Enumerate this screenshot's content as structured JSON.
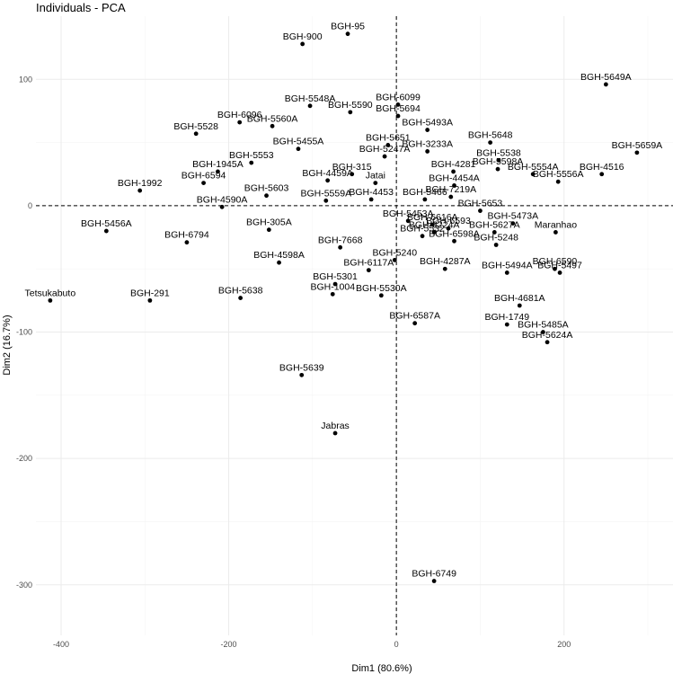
{
  "chart_data": {
    "type": "scatter",
    "title": "Individuals - PCA",
    "xlabel": "Dim1 (80.6%)",
    "ylabel": "Dim2 (16.7%)",
    "xlim": [
      -430,
      330
    ],
    "ylim": [
      -340,
      150
    ],
    "xticks": [
      -400,
      -200,
      0,
      200
    ],
    "yticks": [
      -300,
      -200,
      -100,
      0,
      100
    ],
    "grid": true,
    "reference_lines": {
      "x": 0,
      "y": 0
    },
    "points": [
      {
        "label": "BGH-95",
        "x": -58,
        "y": 136
      },
      {
        "label": "BGH-900",
        "x": -112,
        "y": 128
      },
      {
        "label": "BGH-5649A",
        "x": 250,
        "y": 96
      },
      {
        "label": "BGH-6099",
        "x": 2,
        "y": 80
      },
      {
        "label": "BGH-5548A",
        "x": -103,
        "y": 79
      },
      {
        "label": "BGH-5590",
        "x": -55,
        "y": 74
      },
      {
        "label": "BGH-5694",
        "x": 2,
        "y": 71
      },
      {
        "label": "BGH-6096",
        "x": -187,
        "y": 66
      },
      {
        "label": "BGH-5560A",
        "x": -148,
        "y": 63
      },
      {
        "label": "BGH-5528",
        "x": -239,
        "y": 57
      },
      {
        "label": "BGH-5493A",
        "x": 37,
        "y": 60
      },
      {
        "label": "BGH-5455A",
        "x": -117,
        "y": 45
      },
      {
        "label": "BGH-5651",
        "x": -10,
        "y": 48
      },
      {
        "label": "BGH-5648",
        "x": 112,
        "y": 50
      },
      {
        "label": "BGH-5247A",
        "x": -14,
        "y": 39
      },
      {
        "label": "BGH-3233A",
        "x": 37,
        "y": 43
      },
      {
        "label": "BGH-5538",
        "x": 122,
        "y": 36
      },
      {
        "label": "BGH-5659A",
        "x": 287,
        "y": 42
      },
      {
        "label": "BGH-5553",
        "x": -173,
        "y": 34
      },
      {
        "label": "BGH-1945A",
        "x": -213,
        "y": 27
      },
      {
        "label": "BGH-315",
        "x": -53,
        "y": 25
      },
      {
        "label": "BGH-5598A",
        "x": 121,
        "y": 29
      },
      {
        "label": "BGH-4281",
        "x": 68,
        "y": 27
      },
      {
        "label": "BGH-4516",
        "x": 245,
        "y": 25
      },
      {
        "label": "BGH-6594",
        "x": -230,
        "y": 18
      },
      {
        "label": "BGH-1992",
        "x": -306,
        "y": 12
      },
      {
        "label": "BGH-4459A",
        "x": -82,
        "y": 20
      },
      {
        "label": "BGH-5554A",
        "x": 163,
        "y": 25
      },
      {
        "label": "BGH-5556A",
        "x": 193,
        "y": 19
      },
      {
        "label": "BGH-4454A",
        "x": 69,
        "y": 16
      },
      {
        "label": "BGH-7219A",
        "x": 65,
        "y": 7
      },
      {
        "label": "BGH-5603",
        "x": -155,
        "y": 8
      },
      {
        "label": "BGH-5559A",
        "x": -84,
        "y": 4
      },
      {
        "label": "BGH-4453",
        "x": -30,
        "y": 5
      },
      {
        "label": "BGH-5466",
        "x": 34,
        "y": 5
      },
      {
        "label": "Jatai",
        "x": -25,
        "y": 18
      },
      {
        "label": "BGH-4590A",
        "x": -208,
        "y": -1
      },
      {
        "label": "BGH-5653",
        "x": 100,
        "y": -4
      },
      {
        "label": "BGH-5456A",
        "x": -346,
        "y": -20
      },
      {
        "label": "BGH-305A",
        "x": -152,
        "y": -19
      },
      {
        "label": "BGH-5453A",
        "x": 14,
        "y": -12
      },
      {
        "label": "BGH-6593",
        "x": 62,
        "y": -18
      },
      {
        "label": "BGH-5473A",
        "x": 139,
        "y": -14
      },
      {
        "label": "Maranhao",
        "x": 190,
        "y": -21
      },
      {
        "label": "BGH-5532",
        "x": 31,
        "y": -24
      },
      {
        "label": "BGH-3224A",
        "x": 45,
        "y": -21
      },
      {
        "label": "BGH-6616A",
        "x": 43,
        "y": -15
      },
      {
        "label": "BGH-6598A",
        "x": 69,
        "y": -28
      },
      {
        "label": "BGH-5627A",
        "x": 117,
        "y": -21
      },
      {
        "label": "BGH-6794",
        "x": -250,
        "y": -29
      },
      {
        "label": "BGH-7668",
        "x": -67,
        "y": -33
      },
      {
        "label": "BGH-5248",
        "x": 119,
        "y": -31
      },
      {
        "label": "BGH-5240",
        "x": -2,
        "y": -43
      },
      {
        "label": "BGH-4598A",
        "x": -140,
        "y": -45
      },
      {
        "label": "BGH-6117A",
        "x": -33,
        "y": -51
      },
      {
        "label": "BGH-4287A",
        "x": 58,
        "y": -50
      },
      {
        "label": "BGH-5494A",
        "x": 132,
        "y": -53
      },
      {
        "label": "BGH-6590",
        "x": 189,
        "y": -50
      },
      {
        "label": "BGH-5497",
        "x": 195,
        "y": -53
      },
      {
        "label": "BGH-5301",
        "x": -73,
        "y": -62
      },
      {
        "label": "BGH-1004",
        "x": -76,
        "y": -70
      },
      {
        "label": "BGH-5530A",
        "x": -18,
        "y": -71
      },
      {
        "label": "Tetsukabuto",
        "x": -413,
        "y": -75
      },
      {
        "label": "BGH-291",
        "x": -294,
        "y": -75
      },
      {
        "label": "BGH-5638",
        "x": -186,
        "y": -73
      },
      {
        "label": "BGH-4681A",
        "x": 147,
        "y": -79
      },
      {
        "label": "BGH-6587A",
        "x": 22,
        "y": -93
      },
      {
        "label": "BGH-1749",
        "x": 132,
        "y": -94
      },
      {
        "label": "BGH-5485A",
        "x": 175,
        "y": -100
      },
      {
        "label": "BGH-5624A",
        "x": 180,
        "y": -108
      },
      {
        "label": "BGH-5639",
        "x": -113,
        "y": -134
      },
      {
        "label": "Jabras",
        "x": -73,
        "y": -180
      },
      {
        "label": "BGH-6749",
        "x": 45,
        "y": -297
      }
    ]
  }
}
